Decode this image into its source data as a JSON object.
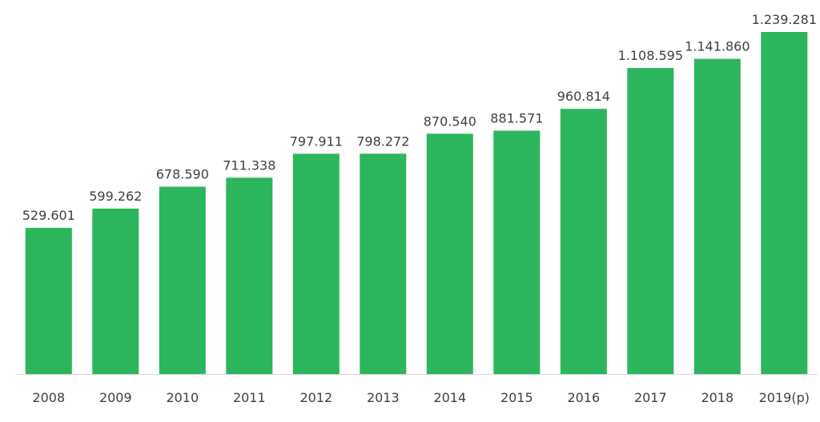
{
  "chart_data": {
    "type": "bar",
    "categories": [
      "2008",
      "2009",
      "2010",
      "2011",
      "2012",
      "2013",
      "2014",
      "2015",
      "2016",
      "2017",
      "2018",
      "2019(p)"
    ],
    "values": [
      529601,
      599262,
      678590,
      711338,
      797911,
      798272,
      870540,
      881571,
      960814,
      1108595,
      1141860,
      1239281
    ],
    "value_labels": [
      "529.601",
      "599.262",
      "678.590",
      "711.338",
      "797.911",
      "798.272",
      "870.540",
      "881.571",
      "960.814",
      "1.108.595",
      "1.141.860",
      "1.239.281"
    ],
    "ylim": [
      0,
      1239281
    ],
    "grid": false,
    "legend": "none",
    "bar_color": "#2db55d",
    "axis_color": "#d9d9d9"
  }
}
